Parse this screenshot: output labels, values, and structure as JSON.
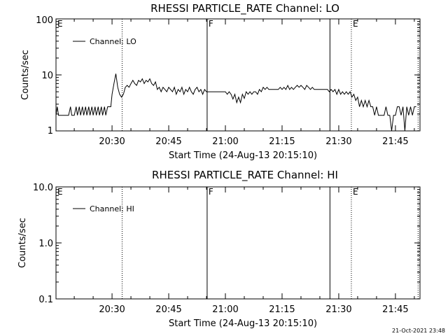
{
  "footer_timestamp": "21-Oct-2021 23:48",
  "chart_data": [
    {
      "type": "line",
      "title": "RHESSI PARTICLE_RATE Channel: LO",
      "xlabel": "Start Time (24-Aug-13 20:15:10)",
      "ylabel": "Counts/sec",
      "yscale": "log",
      "ylim": [
        1,
        100
      ],
      "xlim": [
        "20:15:10",
        "21:51:30"
      ],
      "x_ticks": [
        "20:30",
        "20:45",
        "21:00",
        "21:15",
        "21:30",
        "21:45"
      ],
      "y_ticks": [
        "1",
        "10",
        "100"
      ],
      "legend": {
        "position": "top-left",
        "entries": [
          "Channel: LO"
        ]
      },
      "annotations": [
        {
          "label": "E",
          "time": "20:15:10",
          "style": "none"
        },
        {
          "label": "",
          "time": "20:32:40",
          "style": "dotted"
        },
        {
          "label": "F",
          "time": "20:55:10",
          "style": "solid"
        },
        {
          "label": "",
          "time": "21:27:40",
          "style": "solid"
        },
        {
          "label": "E",
          "time": "21:33:20",
          "style": "dotted"
        },
        {
          "label": "",
          "time": "21:51:00",
          "style": "dotted"
        }
      ],
      "series": [
        {
          "name": "Channel: LO",
          "points": [
            [
              "20:15:10",
              1.9
            ],
            [
              "20:15:30",
              2.7
            ],
            [
              "20:15:50",
              1.9
            ],
            [
              "20:17:00",
              1.9
            ],
            [
              "20:18:30",
              1.9
            ],
            [
              "20:19:00",
              2.7
            ],
            [
              "20:19:20",
              1.9
            ],
            [
              "20:20:00",
              1.9
            ],
            [
              "20:20:30",
              2.7
            ],
            [
              "20:20:50",
              1.9
            ],
            [
              "20:21:20",
              2.7
            ],
            [
              "20:21:40",
              1.9
            ],
            [
              "20:22:10",
              2.7
            ],
            [
              "20:22:30",
              1.9
            ],
            [
              "20:23:00",
              2.7
            ],
            [
              "20:23:20",
              1.9
            ],
            [
              "20:23:50",
              2.7
            ],
            [
              "20:24:10",
              1.9
            ],
            [
              "20:24:40",
              2.7
            ],
            [
              "20:25:00",
              1.9
            ],
            [
              "20:25:30",
              2.7
            ],
            [
              "20:25:50",
              1.9
            ],
            [
              "20:26:20",
              2.7
            ],
            [
              "20:26:40",
              1.9
            ],
            [
              "20:27:10",
              2.7
            ],
            [
              "20:27:30",
              1.9
            ],
            [
              "20:28:00",
              2.7
            ],
            [
              "20:28:20",
              1.9
            ],
            [
              "20:28:50",
              2.7
            ],
            [
              "20:29:10",
              2.7
            ],
            [
              "20:29:40",
              2.7
            ],
            [
              "20:30:00",
              4.5
            ],
            [
              "20:30:30",
              7.0
            ],
            [
              "20:31:00",
              10.5
            ],
            [
              "20:31:30",
              6.0
            ],
            [
              "20:32:00",
              4.5
            ],
            [
              "20:32:30",
              4.0
            ],
            [
              "20:33:00",
              4.5
            ],
            [
              "20:33:30",
              6.0
            ],
            [
              "20:34:00",
              6.5
            ],
            [
              "20:34:30",
              6.0
            ],
            [
              "20:35:00",
              7.0
            ],
            [
              "20:35:30",
              8.0
            ],
            [
              "20:36:00",
              7.0
            ],
            [
              "20:36:30",
              6.5
            ],
            [
              "20:37:00",
              8.0
            ],
            [
              "20:37:30",
              7.5
            ],
            [
              "20:38:00",
              8.5
            ],
            [
              "20:38:30",
              7.0
            ],
            [
              "20:39:00",
              8.0
            ],
            [
              "20:39:30",
              7.5
            ],
            [
              "20:40:00",
              8.5
            ],
            [
              "20:40:30",
              7.0
            ],
            [
              "20:41:00",
              6.5
            ],
            [
              "20:41:30",
              7.5
            ],
            [
              "20:42:00",
              5.5
            ],
            [
              "20:42:30",
              6.0
            ],
            [
              "20:43:00",
              5.0
            ],
            [
              "20:43:30",
              6.0
            ],
            [
              "20:44:00",
              5.5
            ],
            [
              "20:44:30",
              5.0
            ],
            [
              "20:45:00",
              6.0
            ],
            [
              "20:45:30",
              5.5
            ],
            [
              "20:46:00",
              5.0
            ],
            [
              "20:46:30",
              6.0
            ],
            [
              "20:47:00",
              4.5
            ],
            [
              "20:47:30",
              5.5
            ],
            [
              "20:48:00",
              5.0
            ],
            [
              "20:48:30",
              6.0
            ],
            [
              "20:49:00",
              4.5
            ],
            [
              "20:49:30",
              5.5
            ],
            [
              "20:50:00",
              5.0
            ],
            [
              "20:50:30",
              6.0
            ],
            [
              "20:51:00",
              5.0
            ],
            [
              "20:51:30",
              4.5
            ],
            [
              "20:52:00",
              5.5
            ],
            [
              "20:52:30",
              6.0
            ],
            [
              "20:53:00",
              5.0
            ],
            [
              "20:53:30",
              5.5
            ],
            [
              "20:54:00",
              4.5
            ],
            [
              "20:54:30",
              5.5
            ],
            [
              "20:55:00",
              5.0
            ],
            [
              "20:56:00",
              5.0
            ],
            [
              "20:57:00",
              5.0
            ],
            [
              "20:58:00",
              5.0
            ],
            [
              "20:59:00",
              5.0
            ],
            [
              "21:00:00",
              5.0
            ],
            [
              "21:00:30",
              4.5
            ],
            [
              "21:01:00",
              5.0
            ],
            [
              "21:01:30",
              4.5
            ],
            [
              "21:02:00",
              3.7
            ],
            [
              "21:02:30",
              4.5
            ],
            [
              "21:03:00",
              3.2
            ],
            [
              "21:03:30",
              4.0
            ],
            [
              "21:04:00",
              3.2
            ],
            [
              "21:04:30",
              4.5
            ],
            [
              "21:05:00",
              3.8
            ],
            [
              "21:05:30",
              5.0
            ],
            [
              "21:06:00",
              4.5
            ],
            [
              "21:06:30",
              5.0
            ],
            [
              "21:07:00",
              4.5
            ],
            [
              "21:07:30",
              5.0
            ],
            [
              "21:08:00",
              5.0
            ],
            [
              "21:08:30",
              4.5
            ],
            [
              "21:09:00",
              5.5
            ],
            [
              "21:09:30",
              5.0
            ],
            [
              "21:10:00",
              6.0
            ],
            [
              "21:10:30",
              5.5
            ],
            [
              "21:11:00",
              6.0
            ],
            [
              "21:11:30",
              5.5
            ],
            [
              "21:12:00",
              5.5
            ],
            [
              "21:13:00",
              5.5
            ],
            [
              "21:14:00",
              5.5
            ],
            [
              "21:14:30",
              6.0
            ],
            [
              "21:15:00",
              5.5
            ],
            [
              "21:15:30",
              6.0
            ],
            [
              "21:16:00",
              5.5
            ],
            [
              "21:16:30",
              6.5
            ],
            [
              "21:17:00",
              5.5
            ],
            [
              "21:17:30",
              6.0
            ],
            [
              "21:18:00",
              5.5
            ],
            [
              "21:18:30",
              6.0
            ],
            [
              "21:19:00",
              6.5
            ],
            [
              "21:19:30",
              6.0
            ],
            [
              "21:20:00",
              6.5
            ],
            [
              "21:20:30",
              6.0
            ],
            [
              "21:21:00",
              5.5
            ],
            [
              "21:21:30",
              6.5
            ],
            [
              "21:22:00",
              6.0
            ],
            [
              "21:22:30",
              5.5
            ],
            [
              "21:23:00",
              6.0
            ],
            [
              "21:23:30",
              5.5
            ],
            [
              "21:24:00",
              5.5
            ],
            [
              "21:25:00",
              5.5
            ],
            [
              "21:26:00",
              5.5
            ],
            [
              "21:27:00",
              5.5
            ],
            [
              "21:27:30",
              5.0
            ],
            [
              "21:28:00",
              5.5
            ],
            [
              "21:28:30",
              5.0
            ],
            [
              "21:29:00",
              5.5
            ],
            [
              "21:29:30",
              4.5
            ],
            [
              "21:30:00",
              5.5
            ],
            [
              "21:30:30",
              4.5
            ],
            [
              "21:31:00",
              5.0
            ],
            [
              "21:31:30",
              4.5
            ],
            [
              "21:32:00",
              5.0
            ],
            [
              "21:32:30",
              4.5
            ],
            [
              "21:33:00",
              5.0
            ],
            [
              "21:33:30",
              4.0
            ],
            [
              "21:34:00",
              4.5
            ],
            [
              "21:34:30",
              3.5
            ],
            [
              "21:35:00",
              4.0
            ],
            [
              "21:35:30",
              2.7
            ],
            [
              "21:36:00",
              3.5
            ],
            [
              "21:36:30",
              2.7
            ],
            [
              "21:37:00",
              3.5
            ],
            [
              "21:37:30",
              2.7
            ],
            [
              "21:38:00",
              3.5
            ],
            [
              "21:38:30",
              2.7
            ],
            [
              "21:39:00",
              2.7
            ],
            [
              "21:39:30",
              1.9
            ],
            [
              "21:40:00",
              2.7
            ],
            [
              "21:40:30",
              1.9
            ],
            [
              "21:41:00",
              1.9
            ],
            [
              "21:42:00",
              1.9
            ],
            [
              "21:42:30",
              2.7
            ],
            [
              "21:43:00",
              1.9
            ],
            [
              "21:43:30",
              1.9
            ],
            [
              "21:44:00",
              1.0
            ],
            [
              "21:44:30",
              1.9
            ],
            [
              "21:45:00",
              1.9
            ],
            [
              "21:45:30",
              2.7
            ],
            [
              "21:46:00",
              2.7
            ],
            [
              "21:46:30",
              1.9
            ],
            [
              "21:47:00",
              2.7
            ],
            [
              "21:47:30",
              1.0
            ],
            [
              "21:48:00",
              2.7
            ],
            [
              "21:48:30",
              1.9
            ],
            [
              "21:49:00",
              2.7
            ],
            [
              "21:49:30",
              1.9
            ],
            [
              "21:50:00",
              2.7
            ],
            [
              "21:50:30",
              2.7
            ]
          ]
        }
      ]
    },
    {
      "type": "line",
      "title": "RHESSI PARTICLE_RATE Channel: HI",
      "xlabel": "Start Time (24-Aug-13 20:15:10)",
      "ylabel": "Counts/sec",
      "yscale": "log",
      "ylim": [
        0.1,
        10
      ],
      "xlim": [
        "20:15:10",
        "21:51:30"
      ],
      "x_ticks": [
        "20:30",
        "20:45",
        "21:00",
        "21:15",
        "21:30",
        "21:45"
      ],
      "y_ticks": [
        "0.1",
        "1.0",
        "10.0"
      ],
      "legend": {
        "position": "top-left",
        "entries": [
          "Channel: HI"
        ]
      },
      "annotations": [
        {
          "label": "E",
          "time": "20:15:10",
          "style": "none"
        },
        {
          "label": "",
          "time": "20:32:40",
          "style": "dotted"
        },
        {
          "label": "F",
          "time": "20:55:10",
          "style": "solid"
        },
        {
          "label": "",
          "time": "21:27:40",
          "style": "solid"
        },
        {
          "label": "E",
          "time": "21:33:20",
          "style": "dotted"
        },
        {
          "label": "",
          "time": "21:51:00",
          "style": "dotted"
        }
      ],
      "series": [
        {
          "name": "Channel: HI",
          "points": []
        }
      ]
    }
  ]
}
